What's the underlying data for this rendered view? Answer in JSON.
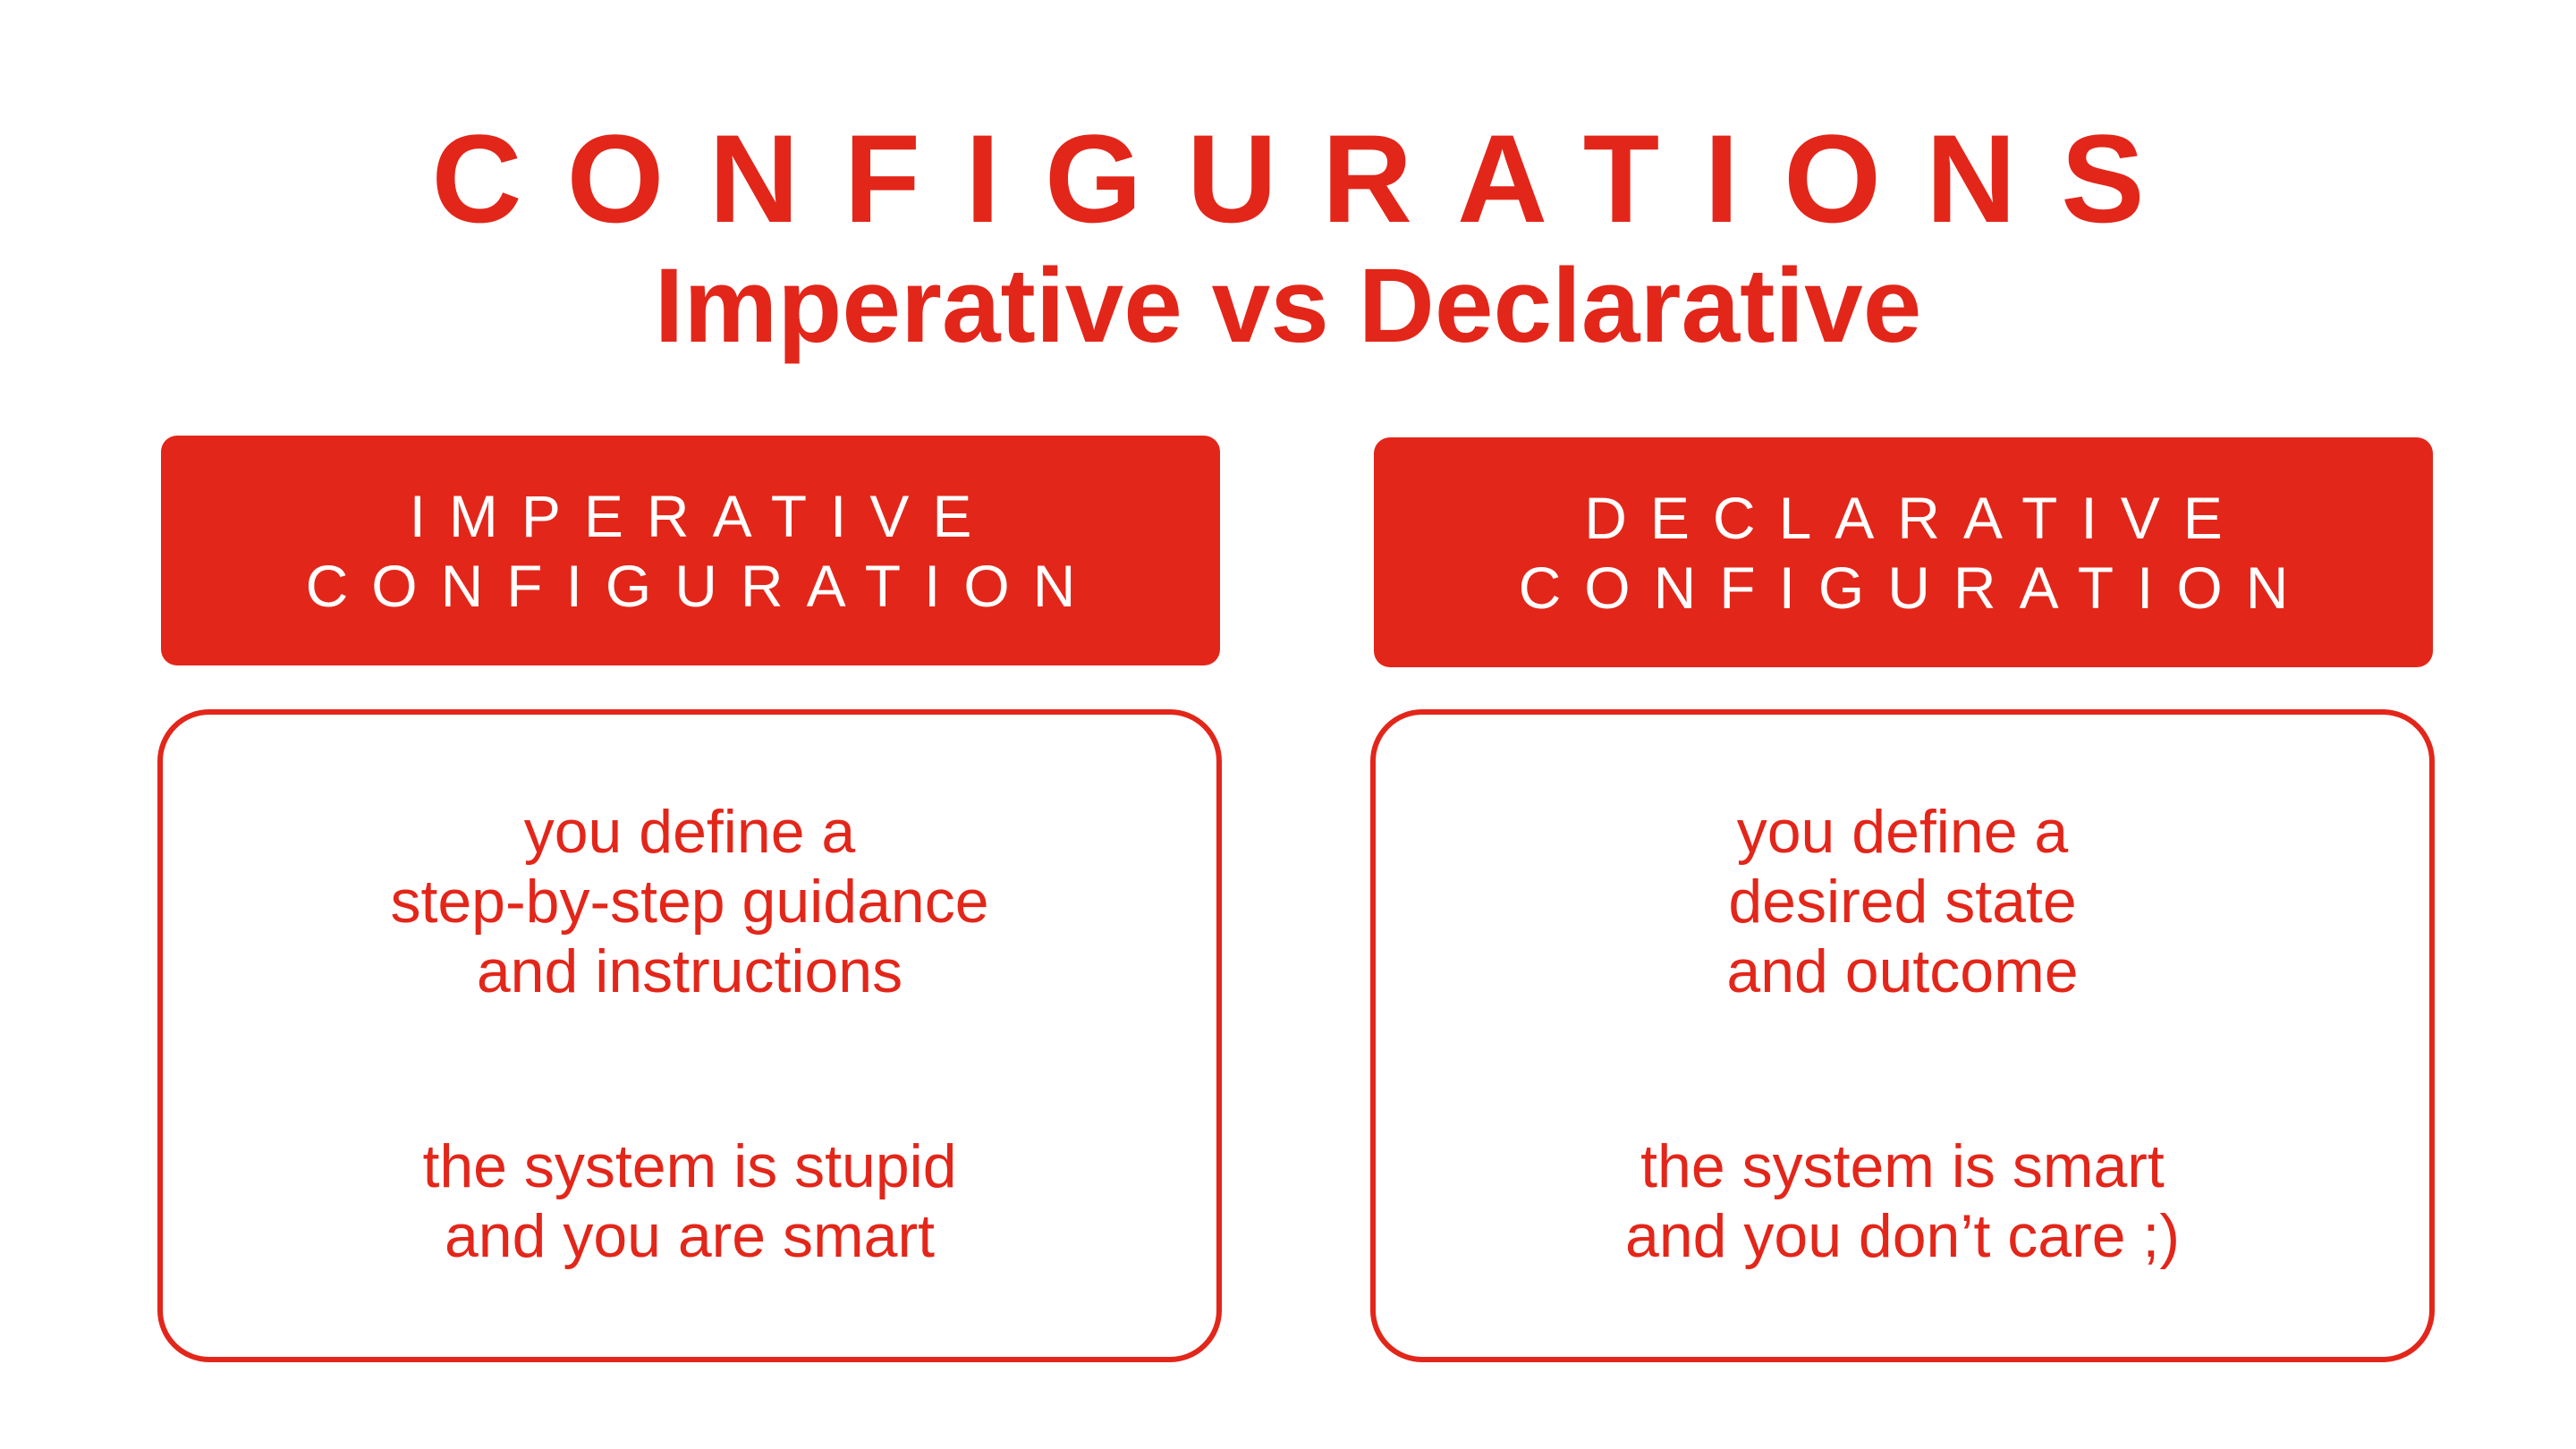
{
  "title": "CONFIGURATIONS",
  "subtitle": "Imperative vs Declarative",
  "imperative": {
    "header_line1": "IMPERATIVE",
    "header_line2": "CONFIGURATION",
    "para1": [
      "you define a",
      "step-by-step guidance",
      "and instructions"
    ],
    "para2": [
      "the system is stupid",
      "and you are smart"
    ]
  },
  "declarative": {
    "header_line1": "DECLARATIVE",
    "header_line2": "CONFIGURATION",
    "para1": [
      "you define a",
      "desired state",
      "and outcome"
    ],
    "para2": [
      "the system is smart",
      "and you don’t care ;)"
    ]
  },
  "colors": {
    "accent": "#e3261a",
    "background": "#ffffff",
    "header_text": "#ffffff"
  }
}
